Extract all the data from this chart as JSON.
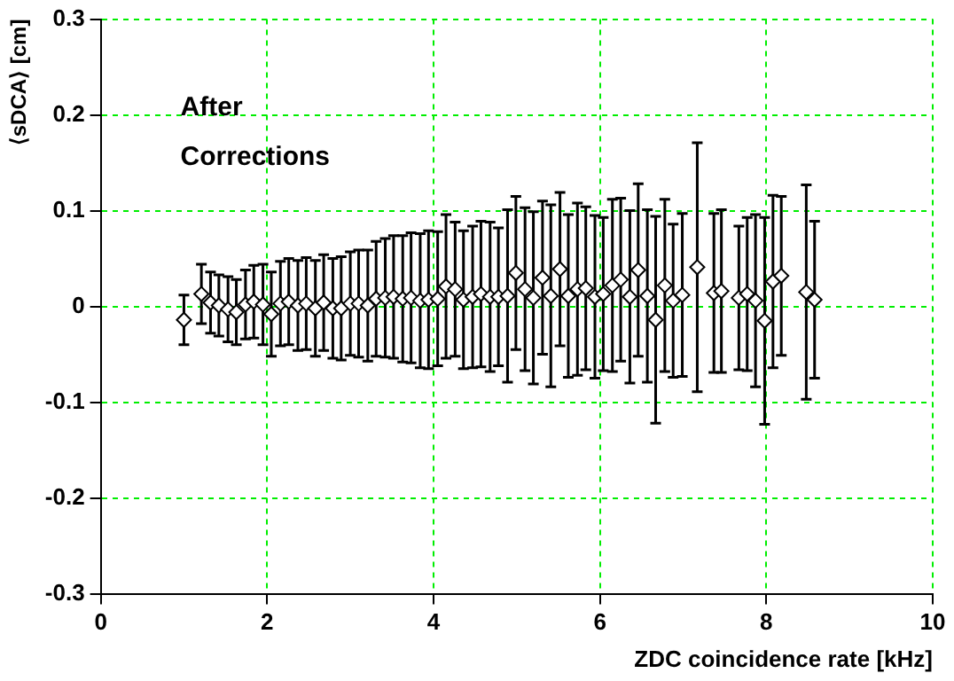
{
  "chart_data": {
    "type": "scatter",
    "xlabel": "ZDC coincidence rate [kHz]",
    "ylabel": "⟨sDCA⟩ [cm]",
    "annotations": [
      "After\nCorrections"
    ],
    "xlim": [
      0,
      10
    ],
    "xticks": [
      0,
      2,
      4,
      6,
      8,
      10
    ],
    "ylim": [
      -0.3,
      0.3
    ],
    "yticks": [
      -0.3,
      -0.2,
      -0.1,
      0,
      0.1,
      0.2,
      0.3
    ],
    "grid": true,
    "legend": false,
    "marker": "diamond",
    "series": [
      {
        "color": "#000000",
        "x": [
          1.0,
          1.21,
          1.32,
          1.42,
          1.53,
          1.63,
          1.74,
          1.84,
          1.95,
          2.05,
          2.16,
          2.26,
          2.37,
          2.47,
          2.58,
          2.68,
          2.79,
          2.89,
          3.0,
          3.1,
          3.21,
          3.31,
          3.42,
          3.52,
          3.63,
          3.73,
          3.84,
          3.94,
          4.05,
          4.15,
          4.26,
          4.36,
          4.47,
          4.57,
          4.68,
          4.78,
          4.89,
          4.99,
          5.1,
          5.2,
          5.31,
          5.41,
          5.52,
          5.62,
          5.73,
          5.83,
          5.94,
          6.04,
          6.15,
          6.25,
          6.36,
          6.46,
          6.57,
          6.67,
          6.78,
          6.88,
          6.99,
          7.17,
          7.37,
          7.46,
          7.67,
          7.77,
          7.87,
          7.98,
          8.08,
          8.18,
          8.48,
          8.58
        ],
        "values": [
          -0.014,
          0.013,
          0.004,
          0.001,
          -0.003,
          -0.006,
          0.002,
          0.005,
          0.002,
          -0.008,
          0.003,
          0.005,
          0.001,
          0.003,
          -0.002,
          0.004,
          -0.002,
          -0.002,
          0.003,
          0.003,
          0.001,
          0.008,
          0.009,
          0.01,
          0.008,
          0.009,
          0.006,
          0.007,
          0.008,
          0.021,
          0.018,
          0.007,
          0.01,
          0.013,
          0.01,
          0.01,
          0.011,
          0.035,
          0.018,
          0.009,
          0.03,
          0.011,
          0.039,
          0.011,
          0.018,
          0.019,
          0.01,
          0.013,
          0.022,
          0.028,
          0.01,
          0.038,
          0.011,
          -0.014,
          0.022,
          0.006,
          0.012,
          0.041,
          0.014,
          0.016,
          0.009,
          0.013,
          0.006,
          -0.015,
          0.026,
          0.032,
          0.015,
          0.007
        ],
        "errors": [
          0.026,
          0.031,
          0.032,
          0.032,
          0.034,
          0.034,
          0.036,
          0.038,
          0.042,
          0.044,
          0.044,
          0.045,
          0.047,
          0.048,
          0.05,
          0.05,
          0.052,
          0.054,
          0.054,
          0.056,
          0.058,
          0.06,
          0.062,
          0.064,
          0.066,
          0.068,
          0.07,
          0.072,
          0.07,
          0.075,
          0.07,
          0.072,
          0.074,
          0.076,
          0.078,
          0.072,
          0.09,
          0.08,
          0.085,
          0.09,
          0.08,
          0.095,
          0.08,
          0.085,
          0.09,
          0.085,
          0.085,
          0.08,
          0.09,
          0.085,
          0.09,
          0.09,
          0.09,
          0.108,
          0.09,
          0.08,
          0.085,
          0.13,
          0.083,
          0.085,
          0.075,
          0.08,
          0.09,
          0.108,
          0.09,
          0.083,
          0.112,
          0.082
        ]
      }
    ]
  }
}
